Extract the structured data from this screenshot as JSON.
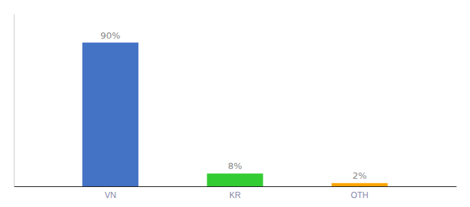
{
  "chart_data": {
    "type": "bar",
    "categories": [
      "VN",
      "KR",
      "OTH"
    ],
    "values": [
      90,
      8,
      2
    ],
    "colors": [
      "#4472C4",
      "#33CC33",
      "#FFA500"
    ],
    "value_labels": [
      "90%",
      "8%",
      "2%"
    ],
    "data_labels": true,
    "ylim": [
      0,
      108
    ],
    "tick_labels": "x"
  }
}
